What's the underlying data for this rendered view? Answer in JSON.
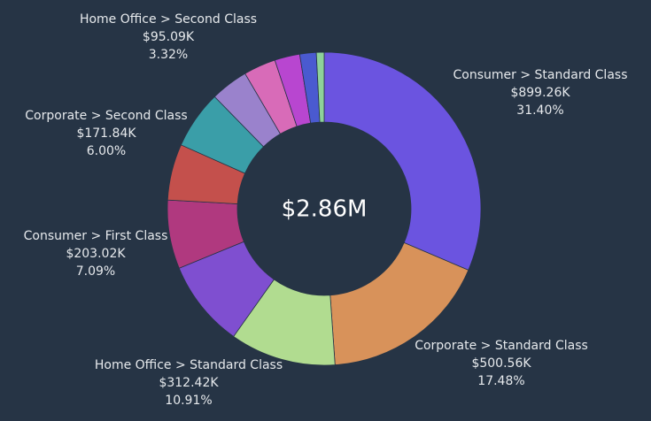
{
  "chart_data": {
    "type": "donut",
    "center_label": "$2.86M",
    "categories": [
      "Consumer > Standard Class",
      "Corporate > Standard Class",
      "Home Office > Standard Class",
      null,
      "Consumer > First Class",
      null,
      "Corporate > Second Class",
      null,
      "Home Office > Second Class",
      null,
      null,
      null
    ],
    "values": [
      899260,
      500560,
      312420,
      257400,
      203020,
      165900,
      171840,
      111500,
      95090,
      74400,
      48600,
      22900
    ],
    "value_labels": [
      "$899.26K",
      "$500.56K",
      "$312.42K",
      null,
      "$203.02K",
      null,
      "$171.84K",
      null,
      "$95.09K",
      null,
      null,
      null
    ],
    "percents": [
      31.4,
      17.48,
      10.91,
      null,
      7.09,
      null,
      6.0,
      null,
      3.32,
      null,
      null,
      null
    ],
    "percent_labels": [
      "31.40%",
      "17.48%",
      "10.91%",
      null,
      "7.09%",
      null,
      "6.00%",
      null,
      "3.32%",
      null,
      null,
      null
    ],
    "colors": [
      "#6b54e0",
      "#d8925a",
      "#b1dc90",
      "#7f4fd0",
      "#b0397f",
      "#c4504c",
      "#3a9ea8",
      "#9a82cc",
      "#d86bb8",
      "#b846d0",
      "#4a5ad0",
      "#8ed19a"
    ]
  }
}
